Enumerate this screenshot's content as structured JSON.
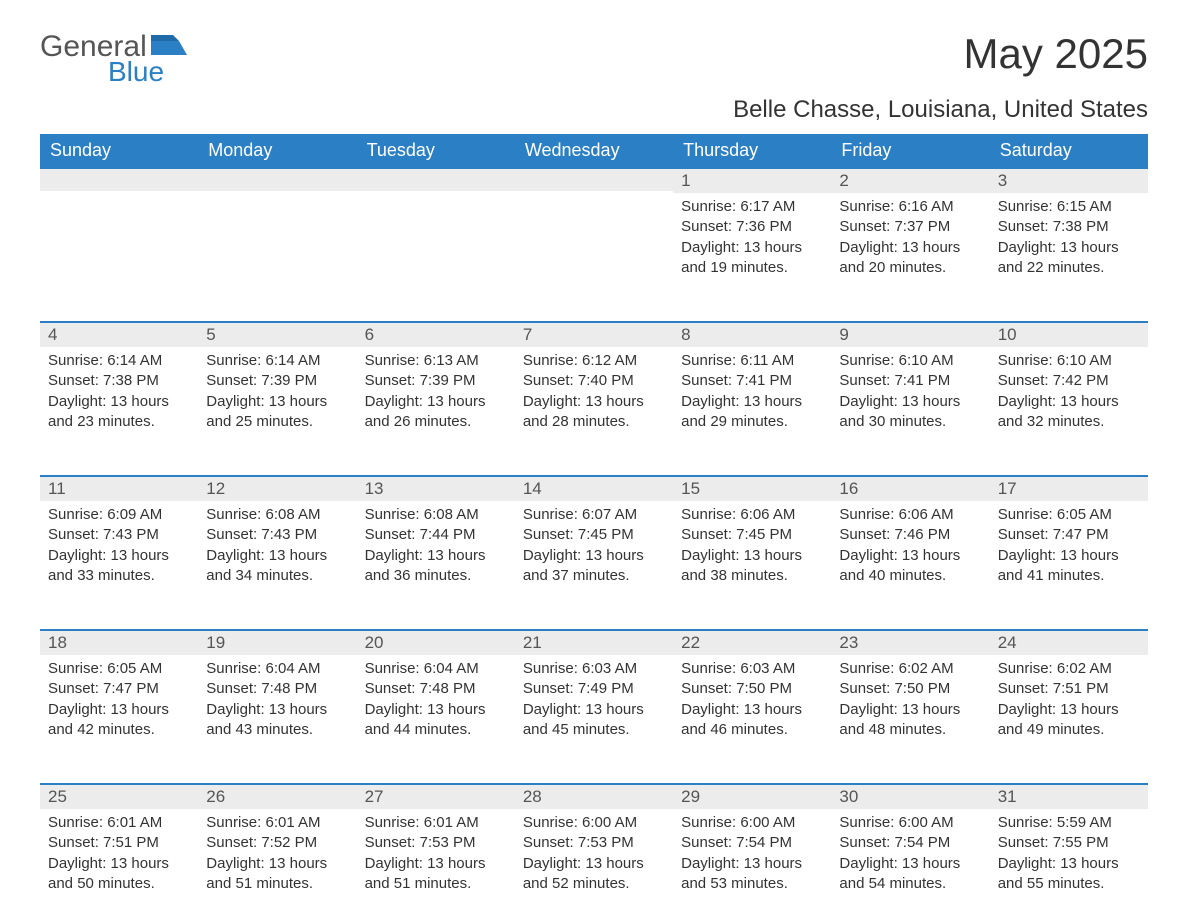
{
  "logo": {
    "general": "General",
    "blue": "Blue"
  },
  "title": "May 2025",
  "subtitle": "Belle Chasse, Louisiana, United States",
  "colors": {
    "header_bg": "#2b7fc4",
    "header_text": "#ffffff",
    "daynum_bg": "#ececec",
    "border_top": "#2b7fc4",
    "text": "#333333",
    "logo_gray": "#555555",
    "logo_blue": "#2b7fc4",
    "page_bg": "#ffffff"
  },
  "weekdays": [
    "Sunday",
    "Monday",
    "Tuesday",
    "Wednesday",
    "Thursday",
    "Friday",
    "Saturday"
  ],
  "first_weekday_index": 4,
  "days": [
    {
      "n": 1,
      "sunrise": "6:17 AM",
      "sunset": "7:36 PM",
      "daylight": "13 hours and 19 minutes."
    },
    {
      "n": 2,
      "sunrise": "6:16 AM",
      "sunset": "7:37 PM",
      "daylight": "13 hours and 20 minutes."
    },
    {
      "n": 3,
      "sunrise": "6:15 AM",
      "sunset": "7:38 PM",
      "daylight": "13 hours and 22 minutes."
    },
    {
      "n": 4,
      "sunrise": "6:14 AM",
      "sunset": "7:38 PM",
      "daylight": "13 hours and 23 minutes."
    },
    {
      "n": 5,
      "sunrise": "6:14 AM",
      "sunset": "7:39 PM",
      "daylight": "13 hours and 25 minutes."
    },
    {
      "n": 6,
      "sunrise": "6:13 AM",
      "sunset": "7:39 PM",
      "daylight": "13 hours and 26 minutes."
    },
    {
      "n": 7,
      "sunrise": "6:12 AM",
      "sunset": "7:40 PM",
      "daylight": "13 hours and 28 minutes."
    },
    {
      "n": 8,
      "sunrise": "6:11 AM",
      "sunset": "7:41 PM",
      "daylight": "13 hours and 29 minutes."
    },
    {
      "n": 9,
      "sunrise": "6:10 AM",
      "sunset": "7:41 PM",
      "daylight": "13 hours and 30 minutes."
    },
    {
      "n": 10,
      "sunrise": "6:10 AM",
      "sunset": "7:42 PM",
      "daylight": "13 hours and 32 minutes."
    },
    {
      "n": 11,
      "sunrise": "6:09 AM",
      "sunset": "7:43 PM",
      "daylight": "13 hours and 33 minutes."
    },
    {
      "n": 12,
      "sunrise": "6:08 AM",
      "sunset": "7:43 PM",
      "daylight": "13 hours and 34 minutes."
    },
    {
      "n": 13,
      "sunrise": "6:08 AM",
      "sunset": "7:44 PM",
      "daylight": "13 hours and 36 minutes."
    },
    {
      "n": 14,
      "sunrise": "6:07 AM",
      "sunset": "7:45 PM",
      "daylight": "13 hours and 37 minutes."
    },
    {
      "n": 15,
      "sunrise": "6:06 AM",
      "sunset": "7:45 PM",
      "daylight": "13 hours and 38 minutes."
    },
    {
      "n": 16,
      "sunrise": "6:06 AM",
      "sunset": "7:46 PM",
      "daylight": "13 hours and 40 minutes."
    },
    {
      "n": 17,
      "sunrise": "6:05 AM",
      "sunset": "7:47 PM",
      "daylight": "13 hours and 41 minutes."
    },
    {
      "n": 18,
      "sunrise": "6:05 AM",
      "sunset": "7:47 PM",
      "daylight": "13 hours and 42 minutes."
    },
    {
      "n": 19,
      "sunrise": "6:04 AM",
      "sunset": "7:48 PM",
      "daylight": "13 hours and 43 minutes."
    },
    {
      "n": 20,
      "sunrise": "6:04 AM",
      "sunset": "7:48 PM",
      "daylight": "13 hours and 44 minutes."
    },
    {
      "n": 21,
      "sunrise": "6:03 AM",
      "sunset": "7:49 PM",
      "daylight": "13 hours and 45 minutes."
    },
    {
      "n": 22,
      "sunrise": "6:03 AM",
      "sunset": "7:50 PM",
      "daylight": "13 hours and 46 minutes."
    },
    {
      "n": 23,
      "sunrise": "6:02 AM",
      "sunset": "7:50 PM",
      "daylight": "13 hours and 48 minutes."
    },
    {
      "n": 24,
      "sunrise": "6:02 AM",
      "sunset": "7:51 PM",
      "daylight": "13 hours and 49 minutes."
    },
    {
      "n": 25,
      "sunrise": "6:01 AM",
      "sunset": "7:51 PM",
      "daylight": "13 hours and 50 minutes."
    },
    {
      "n": 26,
      "sunrise": "6:01 AM",
      "sunset": "7:52 PM",
      "daylight": "13 hours and 51 minutes."
    },
    {
      "n": 27,
      "sunrise": "6:01 AM",
      "sunset": "7:53 PM",
      "daylight": "13 hours and 51 minutes."
    },
    {
      "n": 28,
      "sunrise": "6:00 AM",
      "sunset": "7:53 PM",
      "daylight": "13 hours and 52 minutes."
    },
    {
      "n": 29,
      "sunrise": "6:00 AM",
      "sunset": "7:54 PM",
      "daylight": "13 hours and 53 minutes."
    },
    {
      "n": 30,
      "sunrise": "6:00 AM",
      "sunset": "7:54 PM",
      "daylight": "13 hours and 54 minutes."
    },
    {
      "n": 31,
      "sunrise": "5:59 AM",
      "sunset": "7:55 PM",
      "daylight": "13 hours and 55 minutes."
    }
  ],
  "labels": {
    "sunrise": "Sunrise:",
    "sunset": "Sunset:",
    "daylight": "Daylight:"
  }
}
